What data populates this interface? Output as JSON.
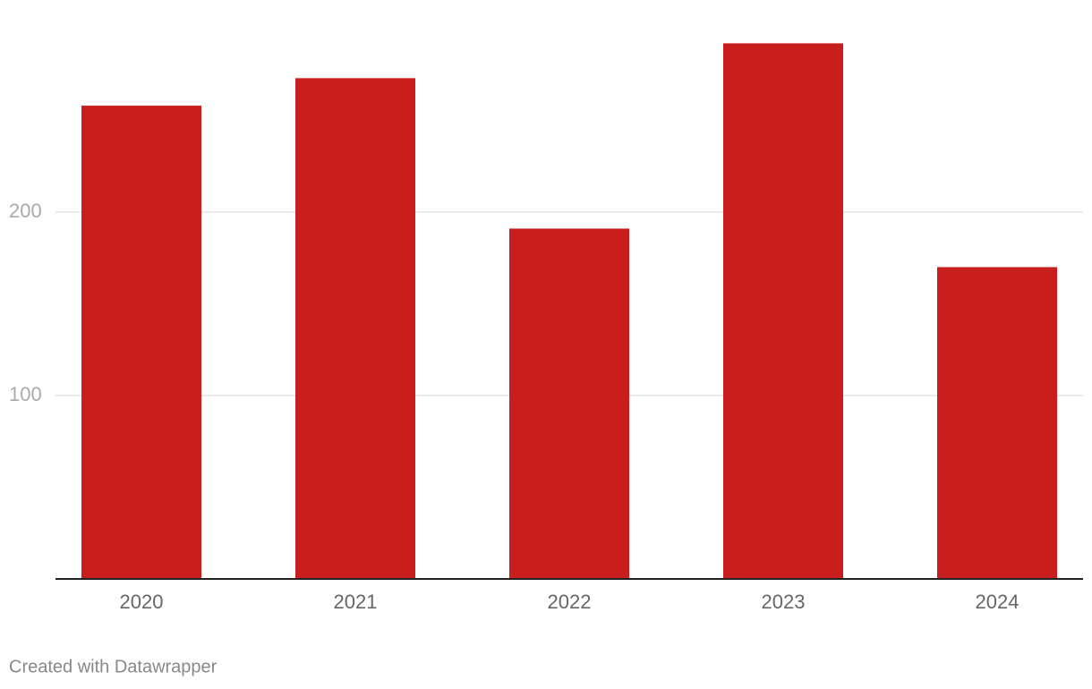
{
  "chart_data": {
    "type": "bar",
    "categories": [
      "2020",
      "2021",
      "2022",
      "2023",
      "2024"
    ],
    "values": [
      258,
      273,
      191,
      292,
      170
    ],
    "color": "#c81e1e",
    "ylim": [
      0,
      300
    ],
    "yticks": [
      100,
      200
    ],
    "grid": true,
    "credit": "Created with Datawrapper"
  }
}
